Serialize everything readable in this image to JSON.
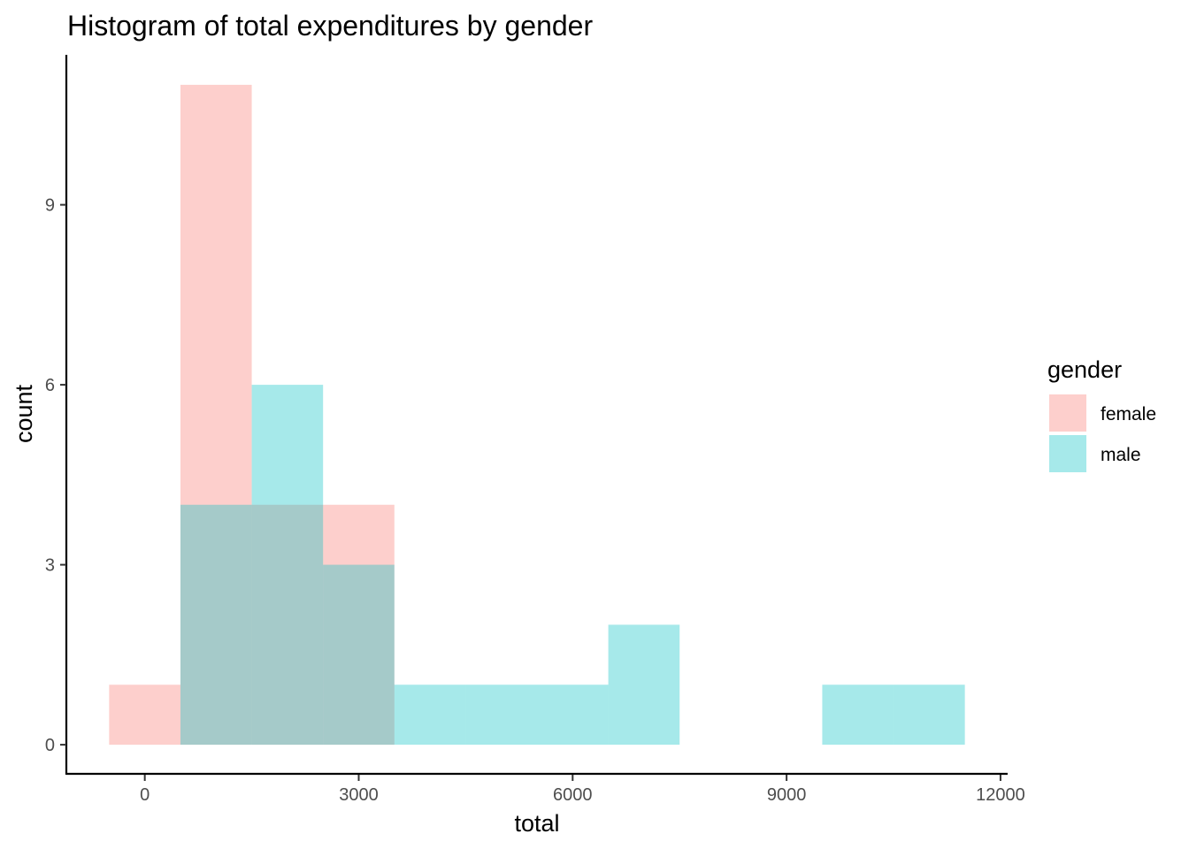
{
  "chart_data": {
    "type": "bar",
    "title": "Histogram of total expenditures by gender",
    "xlabel": "total",
    "ylabel": "count",
    "xlim": [
      -1100,
      12100
    ],
    "ylim": [
      -0.5,
      11.5
    ],
    "x_ticks": [
      0,
      3000,
      6000,
      9000,
      12000
    ],
    "y_ticks": [
      0,
      3,
      6,
      9
    ],
    "x_tick_labels": [
      "0",
      "3000",
      "6000",
      "9000",
      "12000"
    ],
    "y_tick_labels": [
      "0",
      "3",
      "6",
      "9"
    ],
    "bin_width": 1000,
    "bins": [
      0,
      1000,
      2000,
      3000,
      4000,
      5000,
      6000,
      7000,
      8000,
      9000,
      10000,
      11000
    ],
    "series": [
      {
        "name": "female",
        "color": "#F8766D",
        "counts": [
          1,
          11,
          4,
          4,
          0,
          0,
          0,
          0,
          0,
          0,
          0,
          0
        ]
      },
      {
        "name": "male",
        "color": "#00BFC4",
        "counts": [
          0,
          4,
          6,
          3,
          1,
          1,
          1,
          2,
          0,
          0,
          1,
          1
        ]
      }
    ],
    "fill_opacity": 0.35,
    "grid": false,
    "legend_title": "gender",
    "legend_position": "right"
  }
}
